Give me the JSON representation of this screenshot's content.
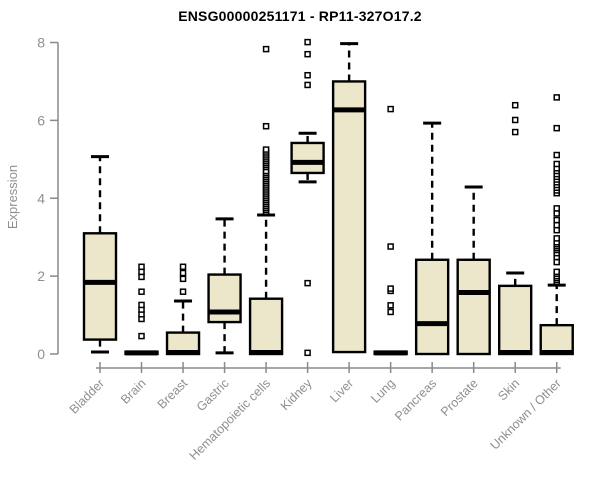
{
  "chart_data": {
    "type": "boxplot",
    "title": "ENSG00000251171 - RP11-327O17.2",
    "ylabel": "Expression",
    "xlabel": "",
    "ylim": [
      0,
      8
    ],
    "yticks": [
      0,
      2,
      4,
      6,
      8
    ],
    "grid": false,
    "legend": "none",
    "categories": [
      "Bladder",
      "Brain",
      "Breast",
      "Gastric",
      "Hematopoietic cells",
      "Kidney",
      "Liver",
      "Lung",
      "Pancreas",
      "Prostate",
      "Skin",
      "Unknown / Other"
    ],
    "series": [
      {
        "category": "Bladder",
        "whisker_low": 0.05,
        "q1": 0.37,
        "median": 1.84,
        "q3": 3.1,
        "whisker_high": 5.07,
        "outliers": []
      },
      {
        "category": "Brain",
        "whisker_low": 0,
        "q1": 0,
        "median": 0.03,
        "q3": 0.06,
        "whisker_high": 0.06,
        "outliers": [
          0.46,
          0.9,
          1.02,
          1.14,
          1.26,
          1.6,
          1.98,
          2.11,
          2.24
        ]
      },
      {
        "category": "Breast",
        "whisker_low": 0,
        "q1": 0,
        "median": 0.04,
        "q3": 0.55,
        "whisker_high": 1.36,
        "outliers": [
          1.6,
          1.93,
          2.08,
          2.24
        ]
      },
      {
        "category": "Gastric",
        "whisker_low": 0.03,
        "q1": 0.82,
        "median": 1.08,
        "q3": 2.04,
        "whisker_high": 3.47,
        "outliers": []
      },
      {
        "category": "Hematopoietic cells",
        "whisker_low": 0,
        "q1": 0,
        "median": 0.04,
        "q3": 1.42,
        "whisker_high": 3.57,
        "outliers": [
          3.65,
          3.7,
          3.75,
          3.8,
          3.85,
          3.9,
          3.95,
          4.0,
          4.05,
          4.1,
          4.15,
          4.2,
          4.25,
          4.3,
          4.35,
          4.4,
          4.45,
          4.5,
          4.55,
          4.6,
          4.65,
          4.7,
          4.8,
          4.85,
          4.9,
          4.95,
          5.0,
          5.05,
          5.1,
          5.15,
          5.2,
          5.25,
          5.85,
          7.83
        ]
      },
      {
        "category": "Kidney",
        "whisker_low": 4.42,
        "q1": 4.65,
        "median": 4.92,
        "q3": 5.42,
        "whisker_high": 5.67,
        "outliers": [
          0.03,
          1.82,
          6.91,
          7.16,
          7.7,
          8.01
        ]
      },
      {
        "category": "Liver",
        "whisker_low": 0.05,
        "q1": 0.05,
        "median": 6.27,
        "q3": 7.0,
        "whisker_high": 7.97,
        "outliers": []
      },
      {
        "category": "Lung",
        "whisker_low": 0,
        "q1": 0,
        "median": 0.03,
        "q3": 0.06,
        "whisker_high": 0.06,
        "outliers": [
          1.08,
          1.25,
          1.62,
          1.68,
          2.76,
          6.29
        ]
      },
      {
        "category": "Pancreas",
        "whisker_low": 0,
        "q1": 0,
        "median": 0.78,
        "q3": 2.42,
        "whisker_high": 5.93,
        "outliers": []
      },
      {
        "category": "Prostate",
        "whisker_low": 0,
        "q1": 0,
        "median": 1.58,
        "q3": 2.42,
        "whisker_high": 4.29,
        "outliers": []
      },
      {
        "category": "Skin",
        "whisker_low": 0,
        "q1": 0,
        "median": 0.04,
        "q3": 1.75,
        "whisker_high": 2.08,
        "outliers": [
          5.7,
          6.01,
          6.39
        ]
      },
      {
        "category": "Unknown / Other",
        "whisker_low": 0,
        "q1": 0,
        "median": 0.04,
        "q3": 0.74,
        "whisker_high": 1.77,
        "outliers": [
          1.85,
          1.9,
          1.95,
          2.0,
          2.06,
          2.11,
          2.36,
          2.49,
          2.59,
          2.67,
          2.72,
          2.77,
          2.82,
          2.87,
          2.97,
          3.18,
          3.31,
          3.44,
          3.61,
          3.74,
          4.13,
          4.2,
          4.27,
          4.34,
          4.41,
          4.48,
          4.55,
          4.62,
          4.7,
          4.77,
          4.88,
          5.11,
          5.8,
          6.59
        ]
      }
    ],
    "colors": {
      "box_fill": "#ECE7CA",
      "box_border": "#000000",
      "median": "#000000",
      "whisker": "#000000",
      "outlier_stroke": "#000000",
      "axis": "#8a8a8a",
      "axis_text": "#8f8f8f",
      "title": "#000000",
      "background": "#ffffff"
    }
  }
}
